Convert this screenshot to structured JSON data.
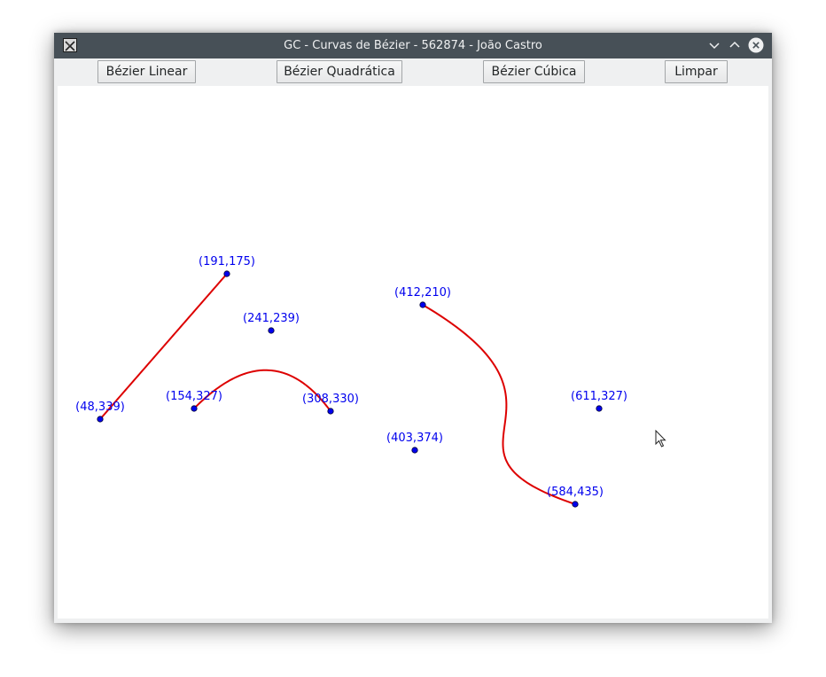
{
  "window": {
    "title": "GC - Curvas de Bézier - 562874 - João Castro"
  },
  "toolbar": {
    "linear_label": "Bézier Linear",
    "quadratic_label": "Bézier Quadrática",
    "cubic_label": "Bézier Cúbica",
    "clear_label": "Limpar"
  },
  "canvas": {
    "point_color": "#0000ee",
    "curve_color": "#dd0000",
    "curves": [
      {
        "type": "linear",
        "points": [
          [
            48,
            339
          ],
          [
            191,
            175
          ]
        ],
        "labels": [
          "(48,339)",
          "(191,175)"
        ]
      },
      {
        "type": "quadratic",
        "points": [
          [
            154,
            327
          ],
          [
            241,
            239
          ],
          [
            308,
            330
          ]
        ],
        "labels": [
          "(154,327)",
          "(241,239)",
          "(308,330)"
        ]
      },
      {
        "type": "cubic",
        "points": [
          [
            412,
            210
          ],
          [
            611,
            327
          ],
          [
            403,
            374
          ],
          [
            584,
            435
          ]
        ],
        "labels": [
          "(412,210)",
          "(611,327)",
          "(403,374)",
          "(584,435)"
        ]
      }
    ]
  }
}
